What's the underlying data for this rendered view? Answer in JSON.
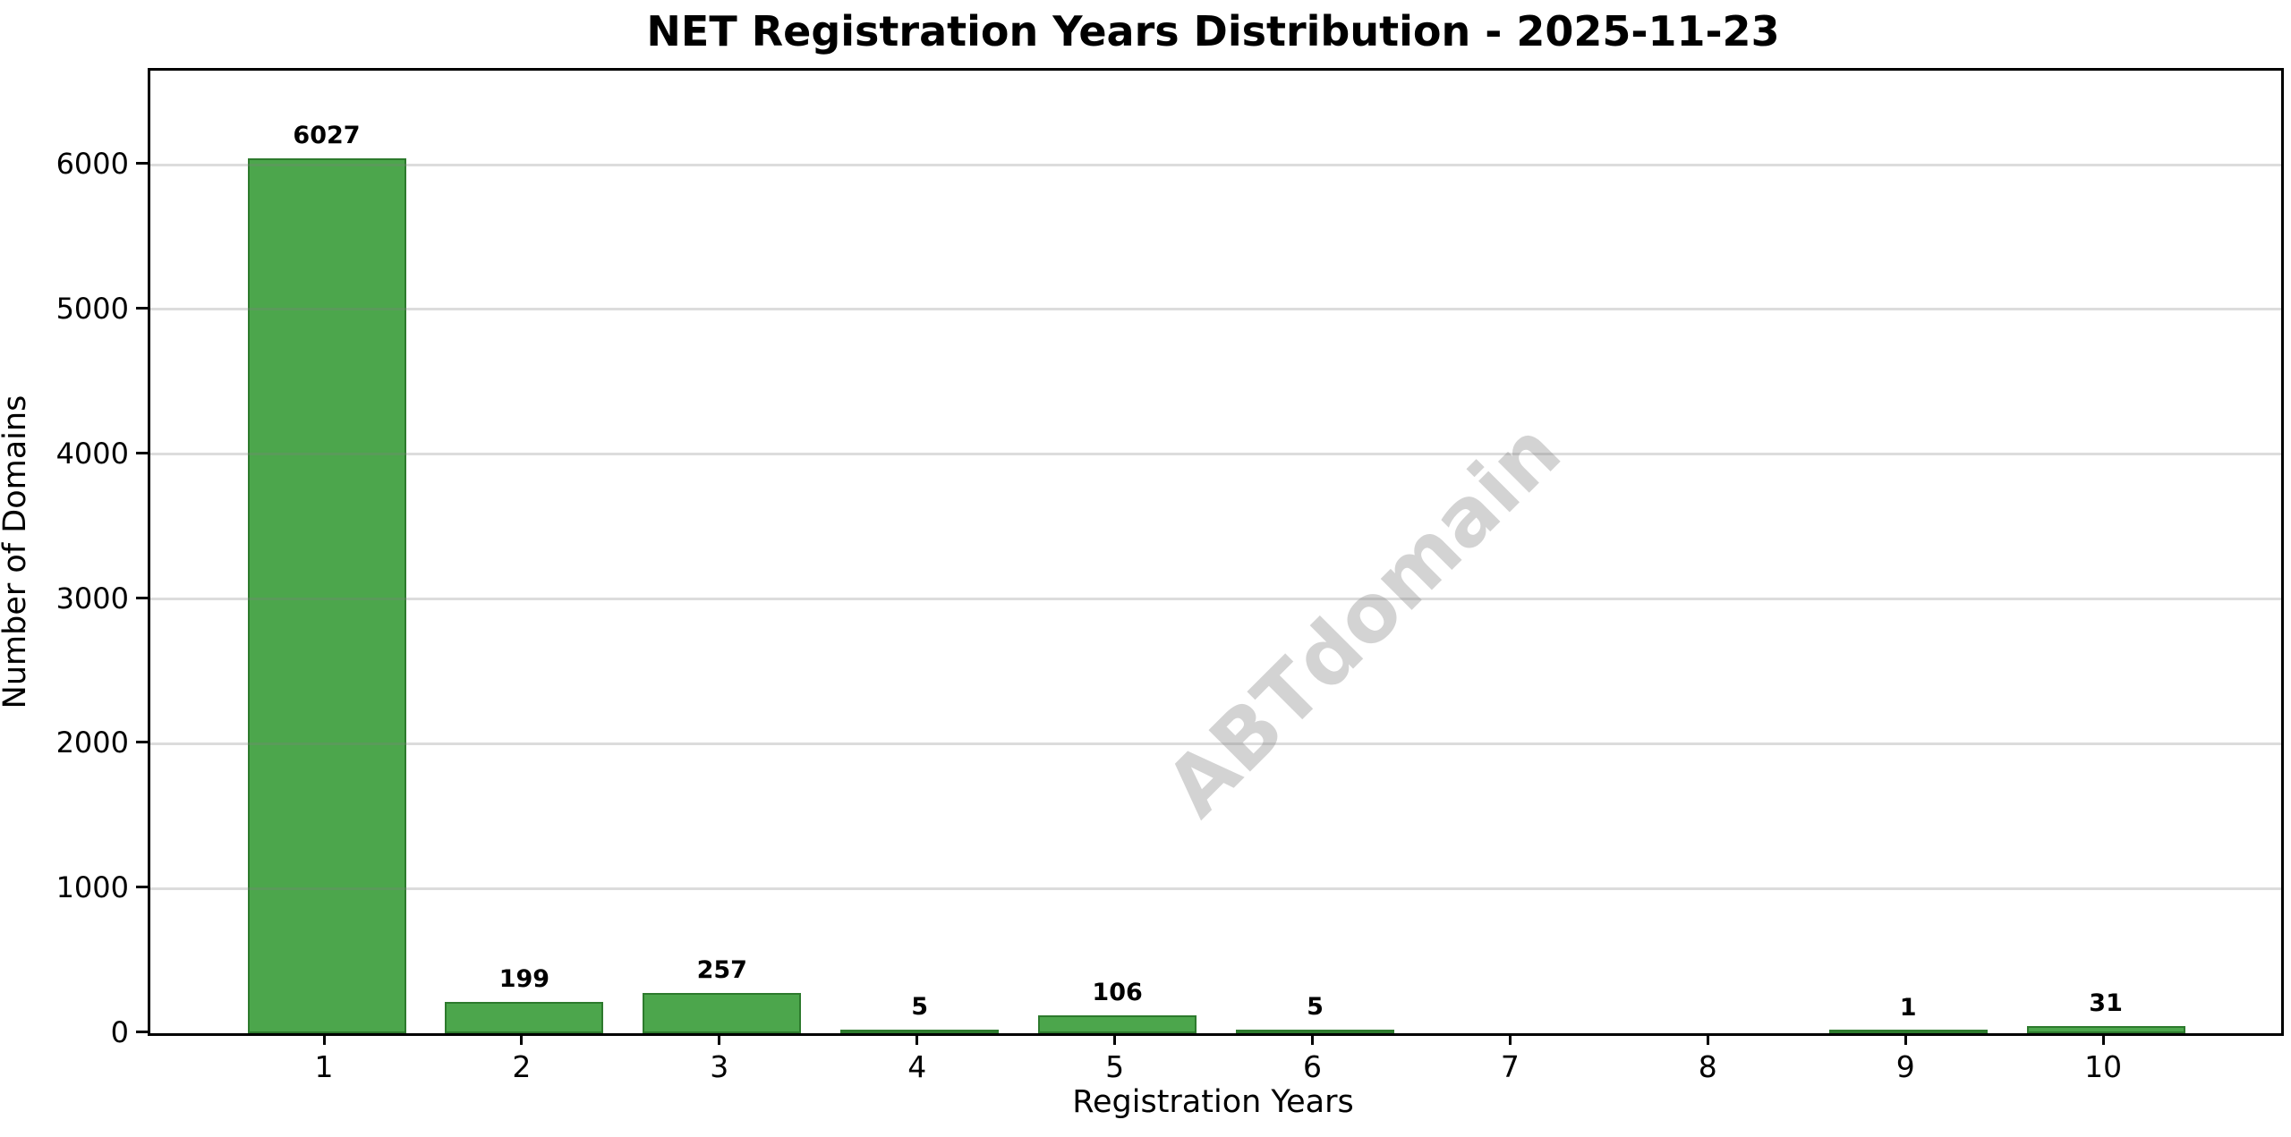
{
  "figure": {
    "title": "NET Registration Years Distribution - 2025-11-23",
    "watermark_text": "ABTdomain"
  },
  "chart_data": {
    "type": "bar",
    "title": "NET Registration Years Distribution - 2025-11-23",
    "xlabel": "Registration Years",
    "ylabel": "Number of Domains",
    "categories": [
      "1",
      "2",
      "3",
      "4",
      "5",
      "6",
      "7",
      "8",
      "9",
      "10"
    ],
    "values": [
      6027,
      199,
      257,
      5,
      106,
      5,
      0,
      0,
      1,
      31
    ],
    "value_labels_shown": [
      "6027",
      "199",
      "257",
      "5",
      "106",
      "5",
      "1",
      "31"
    ],
    "zero_value_bars_unlabeled": true,
    "yticks": [
      0,
      1000,
      2000,
      3000,
      4000,
      5000,
      6000
    ],
    "ylim": [
      0,
      6650
    ],
    "grid": "horizontal",
    "legend_position": "none",
    "colors": {
      "bar_fill": "#4CA64C",
      "bar_edge": "#2D7A2D",
      "gridline": "#dcdcdc",
      "text": "#000000",
      "watermark": "#d4d4d4",
      "background": "#ffffff"
    },
    "watermark": {
      "text": "ABTdomain",
      "rotation_deg": -45
    }
  }
}
